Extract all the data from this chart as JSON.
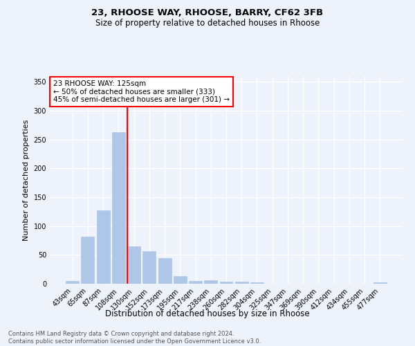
{
  "title1": "23, RHOOSE WAY, RHOOSE, BARRY, CF62 3FB",
  "title2": "Size of property relative to detached houses in Rhoose",
  "xlabel": "Distribution of detached houses by size in Rhoose",
  "ylabel": "Number of detached properties",
  "footnote": "Contains HM Land Registry data © Crown copyright and database right 2024.\nContains public sector information licensed under the Open Government Licence v3.0.",
  "categories": [
    "43sqm",
    "65sqm",
    "87sqm",
    "108sqm",
    "130sqm",
    "152sqm",
    "173sqm",
    "195sqm",
    "217sqm",
    "238sqm",
    "260sqm",
    "282sqm",
    "304sqm",
    "325sqm",
    "347sqm",
    "369sqm",
    "390sqm",
    "412sqm",
    "434sqm",
    "455sqm",
    "477sqm"
  ],
  "values": [
    5,
    82,
    127,
    263,
    65,
    56,
    45,
    13,
    5,
    6,
    4,
    4,
    2,
    0,
    0,
    0,
    0,
    0,
    0,
    0,
    2
  ],
  "bar_color": "#aec6e8",
  "bar_edge_color": "#aec6e8",
  "vline_color": "red",
  "vline_x": 3.575,
  "annotation_text": "23 RHOOSE WAY: 125sqm\n← 50% of detached houses are smaller (333)\n45% of semi-detached houses are larger (301) →",
  "annotation_box_color": "white",
  "annotation_box_edge_color": "red",
  "ylim": [
    0,
    360
  ],
  "yticks": [
    0,
    50,
    100,
    150,
    200,
    250,
    300,
    350
  ],
  "bg_color": "#eef2fb",
  "ax_bg_color": "#eef2fb",
  "grid_color": "white"
}
